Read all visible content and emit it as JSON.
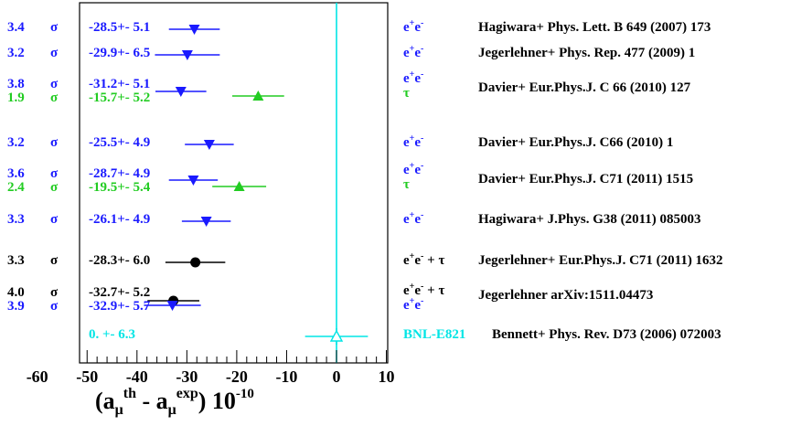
{
  "chart_data": {
    "type": "scatter",
    "xlim": [
      -65,
      12
    ],
    "xticks": [
      "-60",
      "-50",
      "-40",
      "-30",
      "-20",
      "-10",
      "0",
      "10"
    ],
    "x_axis_title": {
      "base": "(a",
      "mu": "μ",
      "th": "th",
      "mid": " - a",
      "exp_sup": "exp",
      "end": ") 10",
      "power": "-10"
    },
    "vertical_line_x": 0,
    "sigma_symbol": "σ",
    "pm_symbol": "+-",
    "points": [
      {
        "sigma": "3.4",
        "value": "-28.5",
        "error": "5.1",
        "x": -28.5,
        "err": 5.1,
        "marker": "tri-down",
        "color": "#1a1aff",
        "exp": "ee",
        "ref": "Hagiwara+ Phys. Lett. B 649 (2007) 173"
      },
      {
        "sigma": "3.2",
        "value": "-29.9",
        "error": "6.5",
        "x": -29.9,
        "err": 6.5,
        "marker": "tri-down",
        "color": "#1a1aff",
        "exp": "ee",
        "ref": "Jegerlehner+ Phys. Rep. 477 (2009) 1"
      },
      {
        "sigma": "3.8",
        "value": "-31.2",
        "error": "5.1",
        "x": -31.2,
        "err": 5.1,
        "marker": "tri-down",
        "color": "#1a1aff",
        "exp": "ee-tau",
        "ref": "Davier+ Eur.Phys.J. C 66 (2010) 127"
      },
      {
        "sigma": "1.9",
        "value": "-15.7",
        "error": "5.2",
        "x": -15.7,
        "err": 5.2,
        "marker": "tri-up",
        "color": "#22cc22",
        "exp": "",
        "ref": ""
      },
      {
        "sigma": "3.2",
        "value": "-25.5",
        "error": "4.9",
        "x": -25.5,
        "err": 4.9,
        "marker": "tri-down",
        "color": "#1a1aff",
        "exp": "ee",
        "ref": "Davier+ Eur.Phys.J. C66 (2010) 1"
      },
      {
        "sigma": "3.6",
        "value": "-28.7",
        "error": "4.9",
        "x": -28.7,
        "err": 4.9,
        "marker": "tri-down",
        "color": "#1a1aff",
        "exp": "ee-tau",
        "ref": "Davier+ Eur.Phys.J. C71 (2011) 1515"
      },
      {
        "sigma": "2.4",
        "value": "-19.5",
        "error": "5.4",
        "x": -19.5,
        "err": 5.4,
        "marker": "tri-up",
        "color": "#22cc22",
        "exp": "",
        "ref": ""
      },
      {
        "sigma": "3.3",
        "value": "-26.1",
        "error": "4.9",
        "x": -26.1,
        "err": 4.9,
        "marker": "tri-down",
        "color": "#1a1aff",
        "exp": "ee",
        "ref": "Hagiwara+ J.Phys. G38 (2011) 085003"
      },
      {
        "sigma": "3.3",
        "value": "-28.3",
        "error": "6.0",
        "x": -28.3,
        "err": 6.0,
        "marker": "circle",
        "color": "#000000",
        "exp": "ee+tau",
        "ref": "Jegerlehner+ Eur.Phys.J. C71 (2011) 1632"
      },
      {
        "sigma": "4.0",
        "value": "-32.7",
        "error": "5.2",
        "x": -32.7,
        "err": 5.2,
        "marker": "circle",
        "color": "#000000",
        "exp": "ee+tau-ee",
        "ref": "Jegerlehner arXiv:1511.04473"
      },
      {
        "sigma": "3.9",
        "value": "-32.9",
        "error": "5.7",
        "x": -32.9,
        "err": 5.7,
        "marker": "tri-down",
        "color": "#1a1aff",
        "exp": "",
        "ref": ""
      },
      {
        "sigma": "",
        "value": "0.",
        "error": "6.3",
        "x": 0,
        "err": 6.3,
        "marker": "tri-up-open",
        "color": "#00e5e5",
        "exp": "BNL-E821",
        "ref": "Bennett+ Phys. Rev. D73 (2006) 072003"
      }
    ],
    "experiment_labels": {
      "e": "e",
      "plus": "+",
      "minus": "-",
      "tau": "τ",
      "plus_tau": " + τ"
    }
  }
}
